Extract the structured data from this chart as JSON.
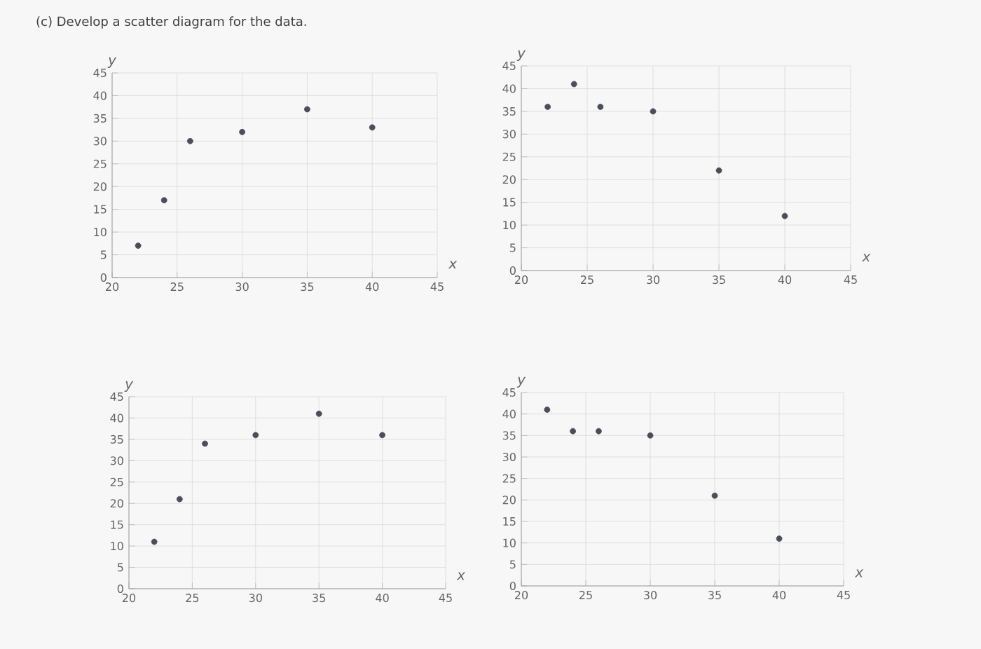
{
  "chart_data": [
    {
      "type": "scatter",
      "title": "(c) Develop a scatter diagram for the data.",
      "xlabel": "x",
      "ylabel": "y",
      "x": [
        22,
        24,
        26,
        30,
        35,
        40
      ],
      "values": [
        7,
        17,
        30,
        32,
        37,
        33
      ],
      "color": "#4a4e58",
      "xlim": [
        20,
        45
      ],
      "ylim": [
        0,
        45
      ],
      "xticks": [
        20,
        25,
        30,
        35,
        40,
        45
      ],
      "yticks": [
        0,
        5,
        10,
        15,
        20,
        25,
        30,
        35,
        40,
        45
      ],
      "grid": true
    },
    {
      "type": "scatter",
      "xlabel": "x",
      "ylabel": "y",
      "x": [
        22,
        24,
        26,
        30,
        35,
        40
      ],
      "values": [
        36,
        41,
        36,
        35,
        22,
        12
      ],
      "color": "#4a4e58",
      "xlim": [
        20,
        45
      ],
      "ylim": [
        0,
        45
      ],
      "xticks": [
        20,
        25,
        30,
        35,
        40,
        45
      ],
      "yticks": [
        0,
        5,
        10,
        15,
        20,
        25,
        30,
        35,
        40,
        45
      ],
      "grid": true
    },
    {
      "type": "scatter",
      "xlabel": "x",
      "ylabel": "y",
      "x": [
        22,
        24,
        26,
        30,
        35,
        40
      ],
      "values": [
        11,
        21,
        34,
        36,
        41,
        36
      ],
      "color": "#4a4e58",
      "xlim": [
        20,
        45
      ],
      "ylim": [
        0,
        45
      ],
      "xticks": [
        20,
        25,
        30,
        35,
        40,
        45
      ],
      "yticks": [
        0,
        5,
        10,
        15,
        20,
        25,
        30,
        35,
        40,
        45
      ],
      "grid": true
    },
    {
      "type": "scatter",
      "xlabel": "x",
      "ylabel": "y",
      "x": [
        22,
        24,
        26,
        30,
        35,
        40
      ],
      "values": [
        41,
        36,
        36,
        35,
        21,
        11
      ],
      "color": "#4a4e58",
      "xlim": [
        20,
        45
      ],
      "ylim": [
        0,
        45
      ],
      "xticks": [
        20,
        25,
        30,
        35,
        40,
        45
      ],
      "yticks": [
        0,
        5,
        10,
        15,
        20,
        25,
        30,
        35,
        40,
        45
      ],
      "grid": true
    }
  ]
}
